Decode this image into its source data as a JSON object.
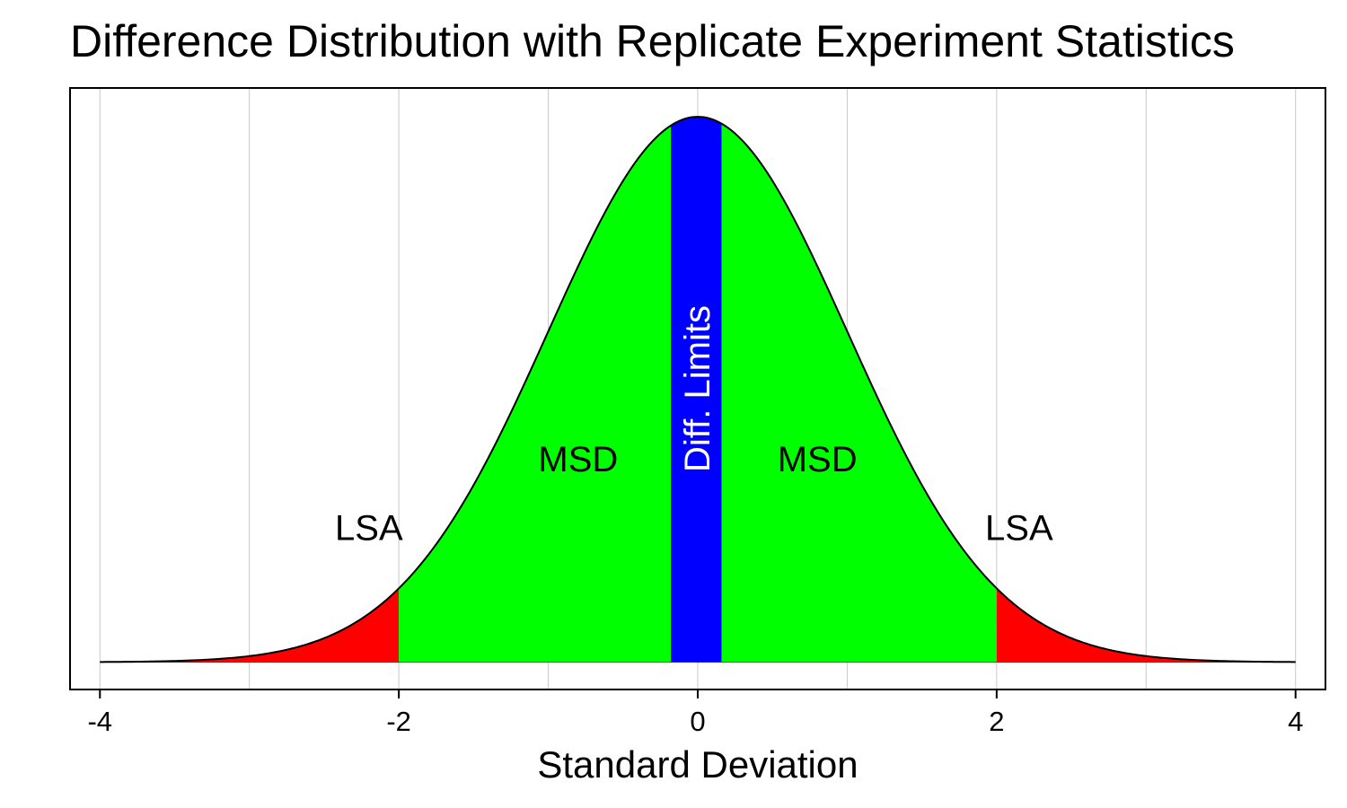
{
  "chart_data": {
    "type": "area",
    "title": "Difference Distribution with Replicate Experiment Statistics",
    "xlabel": "Standard Deviation",
    "ylabel": "",
    "xlim": [
      -4.2,
      4.2
    ],
    "ylim": [
      -0.02,
      0.42
    ],
    "x_ticks": [
      -4,
      -2,
      0,
      2,
      4
    ],
    "x_tick_labels": [
      "-4",
      "-2",
      "0",
      "2",
      "4"
    ],
    "vertical_gridlines": [
      -4,
      -3,
      -2,
      -1,
      0,
      1,
      2,
      3,
      4
    ],
    "grid": "vertical",
    "curve": {
      "distribution": "standard normal density",
      "x_range": [
        -4,
        4
      ]
    },
    "regions": [
      {
        "name": "LSA",
        "from": -4,
        "to": -2,
        "color": "#ff0000"
      },
      {
        "name": "MSD",
        "from": -2,
        "to": -0.18,
        "color": "#00ff00"
      },
      {
        "name": "Diff. Limits",
        "from": -0.18,
        "to": 0.16,
        "color": "#0000ff"
      },
      {
        "name": "MSD",
        "from": 0.16,
        "to": 2,
        "color": "#00ff00"
      },
      {
        "name": "LSA",
        "from": 2,
        "to": 4,
        "color": "#ff0000"
      }
    ],
    "annotations": [
      {
        "text": "LSA",
        "x": -2.2,
        "y": 0.098
      },
      {
        "text": "MSD",
        "x": -0.8,
        "y": 0.148
      },
      {
        "text": "Diff. Limits",
        "x": 0.0,
        "y": 0.2,
        "rotation": -90,
        "color": "#ffffff"
      },
      {
        "text": "MSD",
        "x": 0.8,
        "y": 0.148
      },
      {
        "text": "LSA",
        "x": 2.15,
        "y": 0.098
      }
    ]
  }
}
